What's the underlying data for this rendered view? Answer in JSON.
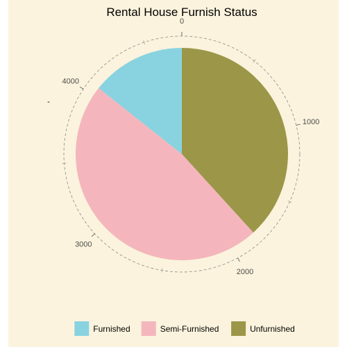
{
  "chart_data": {
    "type": "pie",
    "title": "Rental House Furnish Status",
    "y_axis_label": "-",
    "total": 4746,
    "direction": "clockwise",
    "start": "top",
    "slices": [
      {
        "name": "Unfurnished",
        "value": 1815,
        "color": "#9c9649"
      },
      {
        "name": "Semi-Furnished",
        "value": 2251,
        "color": "#f4b6bc"
      },
      {
        "name": "Furnished",
        "value": 680,
        "color": "#89d3e1"
      }
    ],
    "theta_ticks": [
      {
        "value": 0,
        "label": "0"
      },
      {
        "value": 1000,
        "label": "1000"
      },
      {
        "value": 2000,
        "label": "2000"
      },
      {
        "value": 3000,
        "label": "3000"
      },
      {
        "value": 4000,
        "label": "4000"
      }
    ],
    "legend": {
      "position": "bottom",
      "items": [
        {
          "name": "Furnished",
          "color": "#89d3e1"
        },
        {
          "name": "Semi-Furnished",
          "color": "#f4b6bc"
        },
        {
          "name": "Unfurnished",
          "color": "#9c9649"
        }
      ]
    },
    "background": "#fbf3dd",
    "grid": "dashed-circle"
  }
}
